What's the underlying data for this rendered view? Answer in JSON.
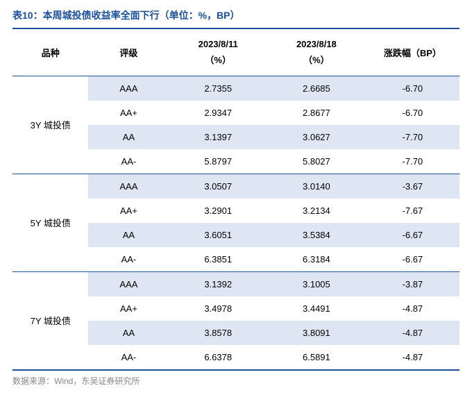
{
  "title": "表10：本周城投债收益率全面下行（单位：%，BP）",
  "source": "数据来源：Wind，东吴证券研究所",
  "columns": {
    "category": "品种",
    "rating": "评级",
    "date1_line1": "2023/8/11",
    "date1_line2": "（%）",
    "date2_line1": "2023/8/18",
    "date2_line2": "（%）",
    "change": "涨跌幅（BP）"
  },
  "groups": [
    {
      "name": "3Y 城投债",
      "rows": [
        {
          "rating": "AAA",
          "v1": "2.7355",
          "v2": "2.6685",
          "chg": "-6.70"
        },
        {
          "rating": "AA+",
          "v1": "2.9347",
          "v2": "2.8677",
          "chg": "-6.70"
        },
        {
          "rating": "AA",
          "v1": "3.1397",
          "v2": "3.0627",
          "chg": "-7.70"
        },
        {
          "rating": "AA-",
          "v1": "5.8797",
          "v2": "5.8027",
          "chg": "-7.70"
        }
      ]
    },
    {
      "name": "5Y 城投债",
      "rows": [
        {
          "rating": "AAA",
          "v1": "3.0507",
          "v2": "3.0140",
          "chg": "-3.67"
        },
        {
          "rating": "AA+",
          "v1": "3.2901",
          "v2": "3.2134",
          "chg": "-7.67"
        },
        {
          "rating": "AA",
          "v1": "3.6051",
          "v2": "3.5384",
          "chg": "-6.67"
        },
        {
          "rating": "AA-",
          "v1": "6.3851",
          "v2": "6.3184",
          "chg": "-6.67"
        }
      ]
    },
    {
      "name": "7Y 城投债",
      "rows": [
        {
          "rating": "AAA",
          "v1": "3.1392",
          "v2": "3.1005",
          "chg": "-3.87"
        },
        {
          "rating": "AA+",
          "v1": "3.4978",
          "v2": "3.4491",
          "chg": "-4.87"
        },
        {
          "rating": "AA",
          "v1": "3.8578",
          "v2": "3.8091",
          "chg": "-4.87"
        },
        {
          "rating": "AA-",
          "v1": "6.6378",
          "v2": "6.5891",
          "chg": "-4.87"
        }
      ]
    }
  ],
  "styling": {
    "title_color": "#1a4f9c",
    "border_color": "#1a4f9c",
    "alt_row_bg": "#dde6f2",
    "text_color": "#000000",
    "source_color": "#888888",
    "background": "#ffffff",
    "title_fontsize": 14,
    "body_fontsize": 13,
    "source_fontsize": 12
  }
}
